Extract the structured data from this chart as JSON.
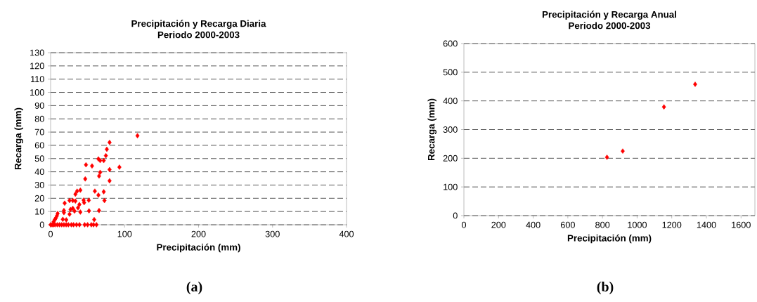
{
  "chart_data": [
    {
      "type": "scatter",
      "title": "Precipitación y Recarga Diaria",
      "subtitle": "Periodo 2000-2003",
      "xlabel": "Precipitación (mm)",
      "ylabel": "Recarga (mm)",
      "x": [
        117.4,
        79.7,
        76,
        74.7,
        64.6,
        67,
        71.8,
        47.8,
        56,
        93,
        79.7,
        67,
        65.5,
        46.8,
        79.7,
        40.2,
        35.8,
        59.8,
        71.8,
        33.5,
        64.6,
        19,
        25.6,
        30,
        33.5,
        51.6,
        72.8,
        44.6,
        45.3,
        38.9,
        37,
        30,
        26.9,
        32.3,
        40.2,
        18,
        18,
        51.9,
        65.5,
        25.6,
        58.9,
        9.5,
        8.5,
        7,
        5.7,
        4.1,
        16.5,
        21.2,
        0,
        2,
        4,
        6,
        9,
        12,
        15,
        18,
        21,
        24,
        28,
        31,
        35,
        39,
        46,
        50,
        55,
        58,
        62
      ],
      "values": [
        67.3,
        62.2,
        57,
        52.2,
        49.7,
        48.5,
        48.5,
        45.3,
        44.4,
        43.5,
        41.7,
        39.6,
        36.8,
        34.6,
        33.2,
        26.1,
        25.4,
        25.4,
        24.9,
        23.1,
        22.4,
        16.3,
        18.3,
        18.3,
        17.9,
        18.5,
        18.3,
        18.6,
        16.7,
        15.3,
        12.8,
        12.4,
        11.5,
        10.3,
        9.6,
        10.7,
        9.2,
        10.5,
        10.7,
        8,
        3.9,
        8.5,
        6.7,
        5,
        3.9,
        2.3,
        4.1,
        3.7,
        0,
        0,
        0,
        0,
        0,
        0,
        0,
        0,
        0,
        0,
        0,
        0,
        0,
        0,
        0,
        0,
        0,
        0,
        0
      ],
      "color": "#ff0000",
      "marker": "diamond",
      "xlim": [
        0,
        400
      ],
      "ylim": [
        0,
        130
      ],
      "xticks": [
        0,
        100,
        200,
        300,
        400
      ],
      "yticks": [
        0,
        10,
        20,
        30,
        40,
        50,
        60,
        70,
        80,
        90,
        100,
        110,
        120,
        130
      ],
      "grid": "y",
      "annotations": [
        "(a)"
      ]
    },
    {
      "type": "scatter",
      "title": "Precipitación y Recarga Anual",
      "subtitle": "Periodo 2000-2003",
      "xlabel": "Precipitación (mm)",
      "ylabel": "Recarga (mm)",
      "x": [
        826,
        917,
        1155,
        1335
      ],
      "values": [
        203.5,
        225,
        379,
        458
      ],
      "color": "#ff0000",
      "marker": "diamond",
      "xlim": [
        0,
        1680
      ],
      "ylim": [
        0,
        600
      ],
      "xticks": [
        0,
        200,
        400,
        600,
        800,
        1000,
        1200,
        1400,
        1600
      ],
      "yticks": [
        0,
        100,
        200,
        300,
        400,
        500,
        600
      ],
      "grid": "y",
      "annotations": [
        "(b)"
      ]
    }
  ]
}
